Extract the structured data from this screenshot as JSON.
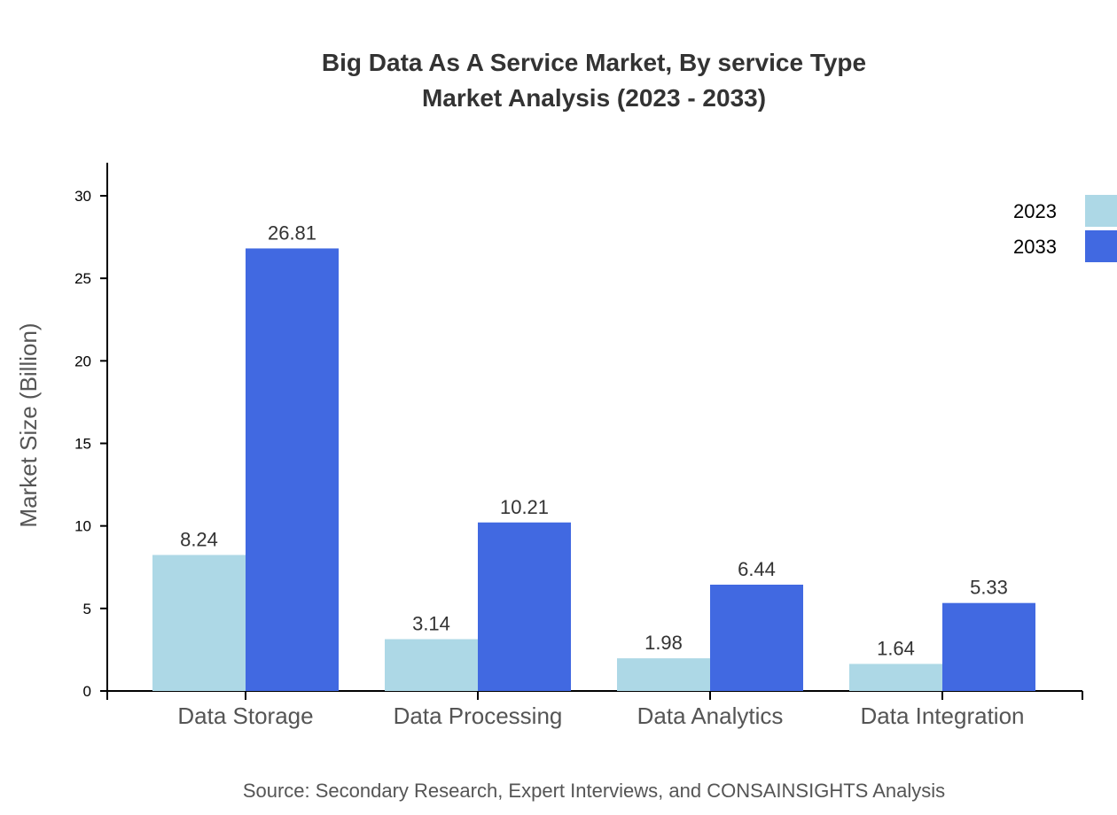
{
  "chart_data": {
    "type": "bar",
    "title": "Big Data As A Service Market, By service Type",
    "subtitle": "Market Analysis (2023 - 2033)",
    "xlabel": "",
    "ylabel": "Market Size (Billion)",
    "ylim": [
      0,
      32
    ],
    "yticks": [
      0,
      5,
      10,
      15,
      20,
      25,
      30
    ],
    "grid": false,
    "legend_position": "top-right",
    "categories": [
      "Data Storage",
      "Data Processing",
      "Data Analytics",
      "Data Integration"
    ],
    "series": [
      {
        "name": "2023",
        "color": "#ADD8E6",
        "values": [
          8.24,
          3.14,
          1.98,
          1.64
        ]
      },
      {
        "name": "2033",
        "color": "#4169E1",
        "values": [
          26.81,
          10.21,
          6.44,
          5.33
        ]
      }
    ],
    "source": "Source: Secondary Research, Expert Interviews, and CONSAINSIGHTS Analysis"
  }
}
